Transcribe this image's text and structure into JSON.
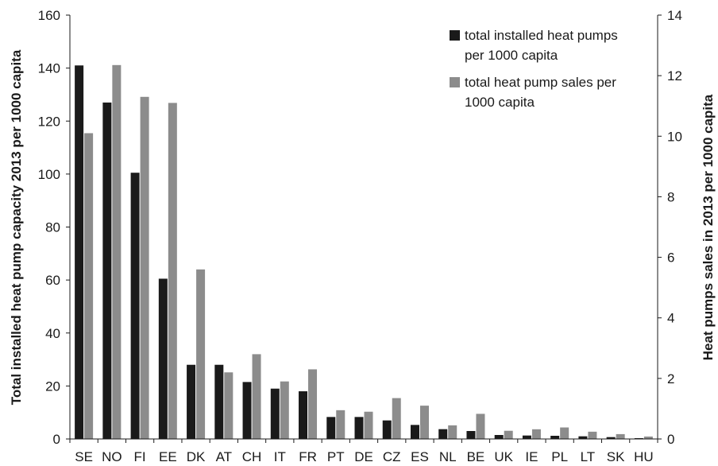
{
  "chart_data": {
    "type": "bar",
    "categories": [
      "SE",
      "NO",
      "FI",
      "EE",
      "DK",
      "AT",
      "CH",
      "IT",
      "FR",
      "PT",
      "DE",
      "CZ",
      "ES",
      "NL",
      "BE",
      "UK",
      "IE",
      "PL",
      "LT",
      "SK",
      "HU"
    ],
    "series": [
      {
        "name": "total installed heat pumps per 1000 capita",
        "axis": "left",
        "color": "#1a1a1a",
        "values": [
          141,
          127,
          100.5,
          60.5,
          28,
          28,
          21.5,
          19,
          18,
          8.3,
          8.3,
          7,
          5.3,
          3.7,
          3,
          1.5,
          1.3,
          1.2,
          1,
          0.7,
          0.3
        ]
      },
      {
        "name": "total heat pump sales per 1000 capita",
        "axis": "right",
        "color": "#8c8c8c",
        "values": [
          10.1,
          12.35,
          11.3,
          11.1,
          5.6,
          2.2,
          2.8,
          1.9,
          2.3,
          0.95,
          0.9,
          1.35,
          1.1,
          0.45,
          0.83,
          0.27,
          0.32,
          0.38,
          0.24,
          0.16,
          0.08
        ]
      }
    ],
    "ylabel": "Total installed heat pump capacity 2013 per 1000 capita",
    "ylabel_right": "Heat pumps sales in 2013 per 1000 capita",
    "ylim": [
      0,
      160
    ],
    "ylim_right": [
      0,
      14
    ],
    "yticks": [
      0,
      20,
      40,
      60,
      80,
      100,
      120,
      140,
      160
    ],
    "yticks_right": [
      0,
      2,
      4,
      6,
      8,
      10,
      12,
      14
    ],
    "legend": {
      "position": "top-right",
      "entries": [
        {
          "line1": "total installed heat pumps",
          "line2": "per 1000 capita",
          "color": "#1a1a1a"
        },
        {
          "line1": "total heat pump sales per",
          "line2": "1000 capita",
          "color": "#8c8c8c"
        }
      ]
    },
    "grid": false
  }
}
